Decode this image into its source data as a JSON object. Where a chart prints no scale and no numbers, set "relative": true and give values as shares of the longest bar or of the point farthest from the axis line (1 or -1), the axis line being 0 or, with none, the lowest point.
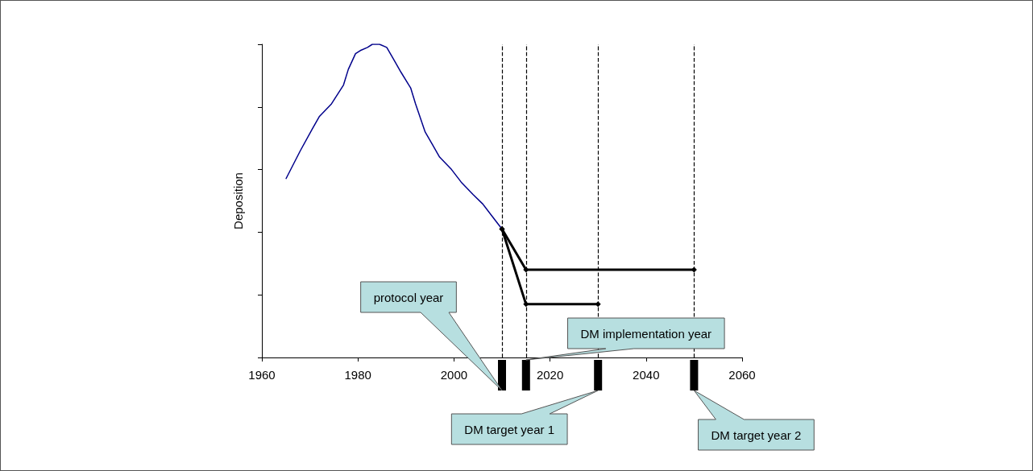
{
  "chart_data": {
    "type": "line",
    "ylabel": "Deposition",
    "relative": true,
    "xlim": [
      1960,
      2060
    ],
    "xticks": [
      1960,
      1980,
      2000,
      2020,
      2040,
      2060
    ],
    "grid": false,
    "series": [
      {
        "color": "#00008b",
        "marker": "none",
        "x": [
          1965,
          1968,
          1970.5,
          1972,
          1974.5,
          1977,
          1978,
          1979.5,
          1980.5,
          1982,
          1983,
          1984.5,
          1986,
          1987.5,
          1989,
          1991,
          1992,
          1994,
          1995.5,
          1997,
          1999.5,
          2001.5,
          2004,
          2006,
          2008,
          2010
        ],
        "values": [
          0.57,
          0.66,
          0.73,
          0.77,
          0.81,
          0.87,
          0.92,
          0.97,
          0.98,
          0.99,
          1,
          1,
          0.99,
          0.95,
          0.91,
          0.86,
          0.81,
          0.72,
          0.68,
          0.64,
          0.6,
          0.56,
          0.52,
          0.49,
          0.45,
          0.41
        ]
      },
      {
        "color": "#000000",
        "marker": "diamond",
        "x": [
          2010,
          2015,
          2050
        ],
        "values": [
          0.41,
          0.28,
          0.28
        ]
      },
      {
        "color": "#000000",
        "marker": "diamond",
        "x": [
          2010,
          2015,
          2030
        ],
        "values": [
          0.41,
          0.17,
          0.17
        ]
      }
    ],
    "ref_lines": [
      {
        "axis": "x",
        "value": 2010,
        "color": "#000000",
        "line_style": "dashed"
      },
      {
        "axis": "x",
        "value": 2015,
        "color": "#000000",
        "line_style": "dashed"
      },
      {
        "axis": "x",
        "value": 2030,
        "color": "#000000",
        "line_style": "dashed"
      },
      {
        "axis": "x",
        "value": 2050,
        "color": "#000000",
        "line_style": "dashed"
      }
    ],
    "annotations": [
      "protocol year",
      "DM implementation year",
      "DM target year 1",
      "DM target year 2"
    ]
  }
}
